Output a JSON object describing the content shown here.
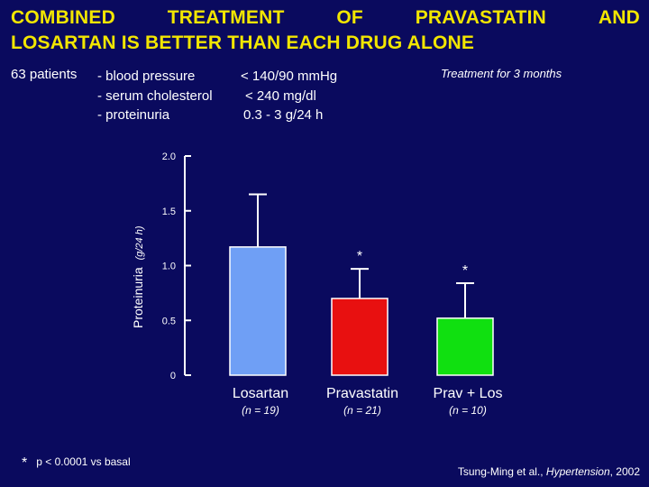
{
  "title": {
    "line1_words": [
      "COMBINED",
      "TREATMENT",
      "OF",
      "PRAVASTATIN",
      "AND"
    ],
    "line2": "LOSARTAN IS BETTER THAN EACH DRUG ALONE"
  },
  "patients_label": "63 patients",
  "criteria": [
    {
      "label": "- blood pressure",
      "value": "< 140/90 mmHg"
    },
    {
      "label": "- serum cholesterol",
      "value": "< 240 mg/dl"
    },
    {
      "label": "- proteinuria",
      "value": "0.3 - 3 g/24 h"
    }
  ],
  "treatment_note": "Treatment for 3 months",
  "footnote": {
    "symbol": "*",
    "text": "p < 0.0001 vs basal"
  },
  "citation": {
    "authors": "Tsung-Ming et al., ",
    "journal": "Hypertension",
    "year": ", 2002"
  },
  "colors": {
    "background": "#0a0a5e",
    "title": "#f2e600",
    "bars": [
      "#6f9ff5",
      "#e81010",
      "#10e010"
    ]
  },
  "chart_data": {
    "type": "bar",
    "ylabel": "Proteinuria",
    "ylabel_unit": "(g/24 h)",
    "ylim": [
      0,
      2.0
    ],
    "yticks": [
      "0",
      "0.5",
      "1.0",
      "1.5",
      "2.0"
    ],
    "ytick_values": [
      0,
      0.5,
      1.0,
      1.5,
      2.0
    ],
    "categories": [
      "Losartan",
      "Pravastatin",
      "Prav + Los"
    ],
    "sample_sizes": [
      "(n = 19)",
      "(n = 21)",
      "(n = 10)"
    ],
    "values": [
      1.17,
      0.7,
      0.52
    ],
    "error_upper": [
      1.65,
      0.97,
      0.84
    ],
    "significance": [
      "",
      "*",
      "*"
    ]
  }
}
